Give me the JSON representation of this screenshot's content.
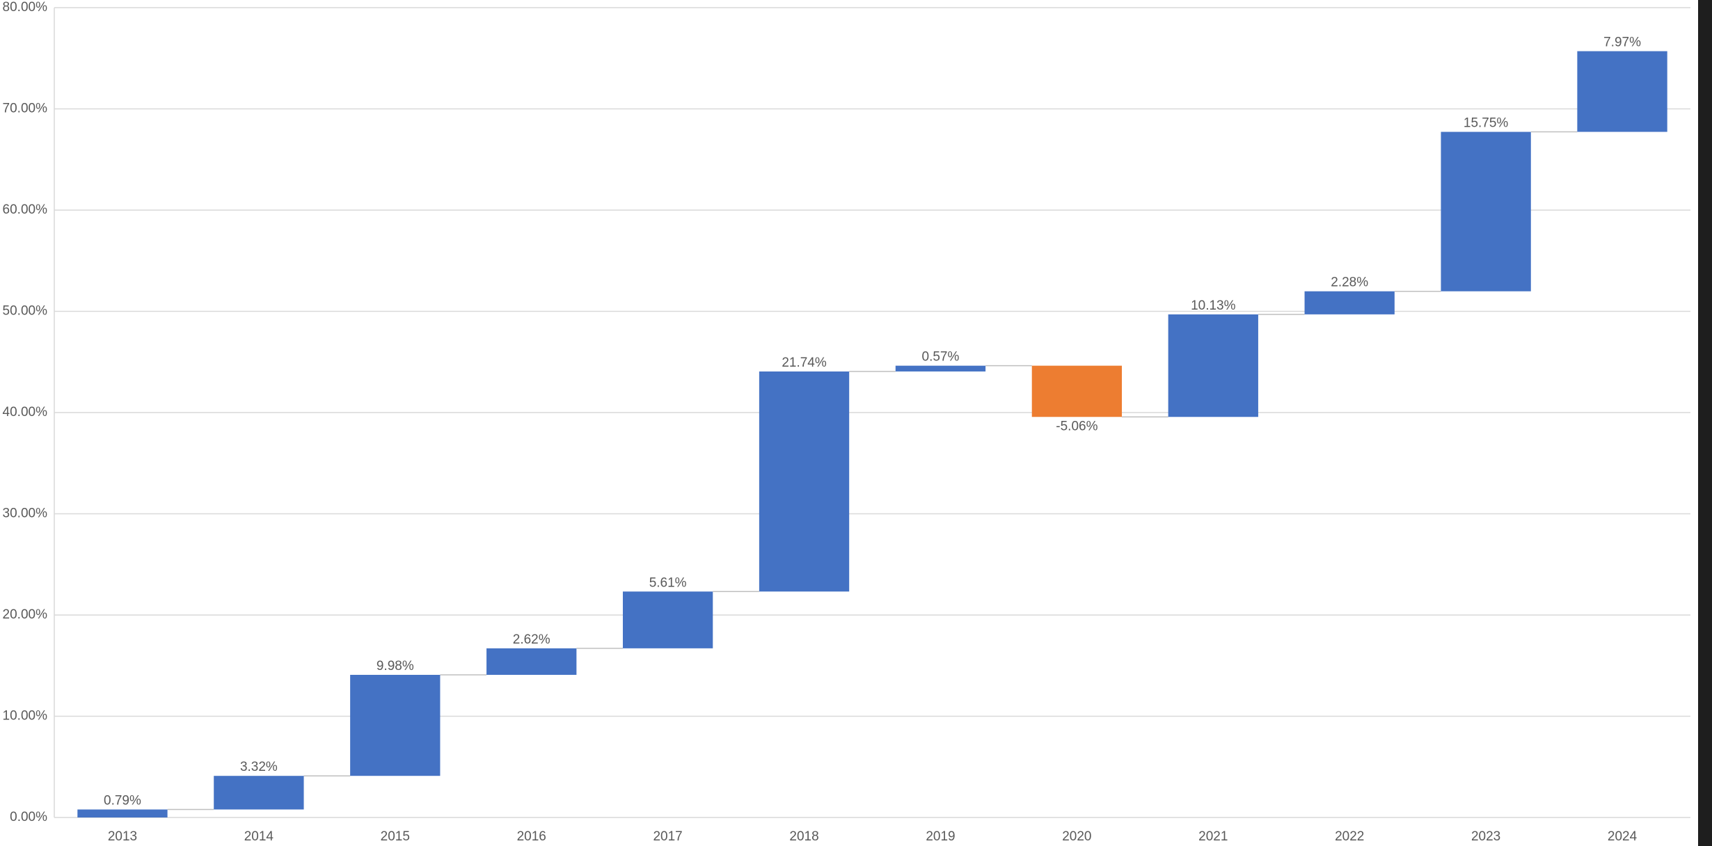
{
  "chart_data": {
    "type": "waterfall",
    "categories": [
      "2013",
      "2014",
      "2015",
      "2016",
      "2017",
      "2018",
      "2019",
      "2020",
      "2021",
      "2022",
      "2023",
      "2024"
    ],
    "values": [
      0.79,
      3.32,
      9.98,
      2.62,
      5.61,
      21.74,
      0.57,
      -5.06,
      10.13,
      2.28,
      15.75,
      7.97
    ],
    "value_labels": [
      "0.79%",
      "3.32%",
      "9.98%",
      "2.62%",
      "5.61%",
      "21.74%",
      "0.57%",
      "-5.06%",
      "10.13%",
      "2.28%",
      "15.75%",
      "7.97%"
    ],
    "increase_color": "#4472c4",
    "decrease_color": "#ed7d31",
    "ylim": [
      0,
      80
    ],
    "yticks": [
      {
        "value": 0,
        "label": "0.00%"
      },
      {
        "value": 10,
        "label": "10.00%"
      },
      {
        "value": 20,
        "label": "20.00%"
      },
      {
        "value": 30,
        "label": "30.00%"
      },
      {
        "value": 40,
        "label": "40.00%"
      },
      {
        "value": 50,
        "label": "50.00%"
      },
      {
        "value": 60,
        "label": "60.00%"
      },
      {
        "value": 70,
        "label": "70.00%"
      },
      {
        "value": 80,
        "label": "80.00%"
      }
    ],
    "grid": true
  }
}
